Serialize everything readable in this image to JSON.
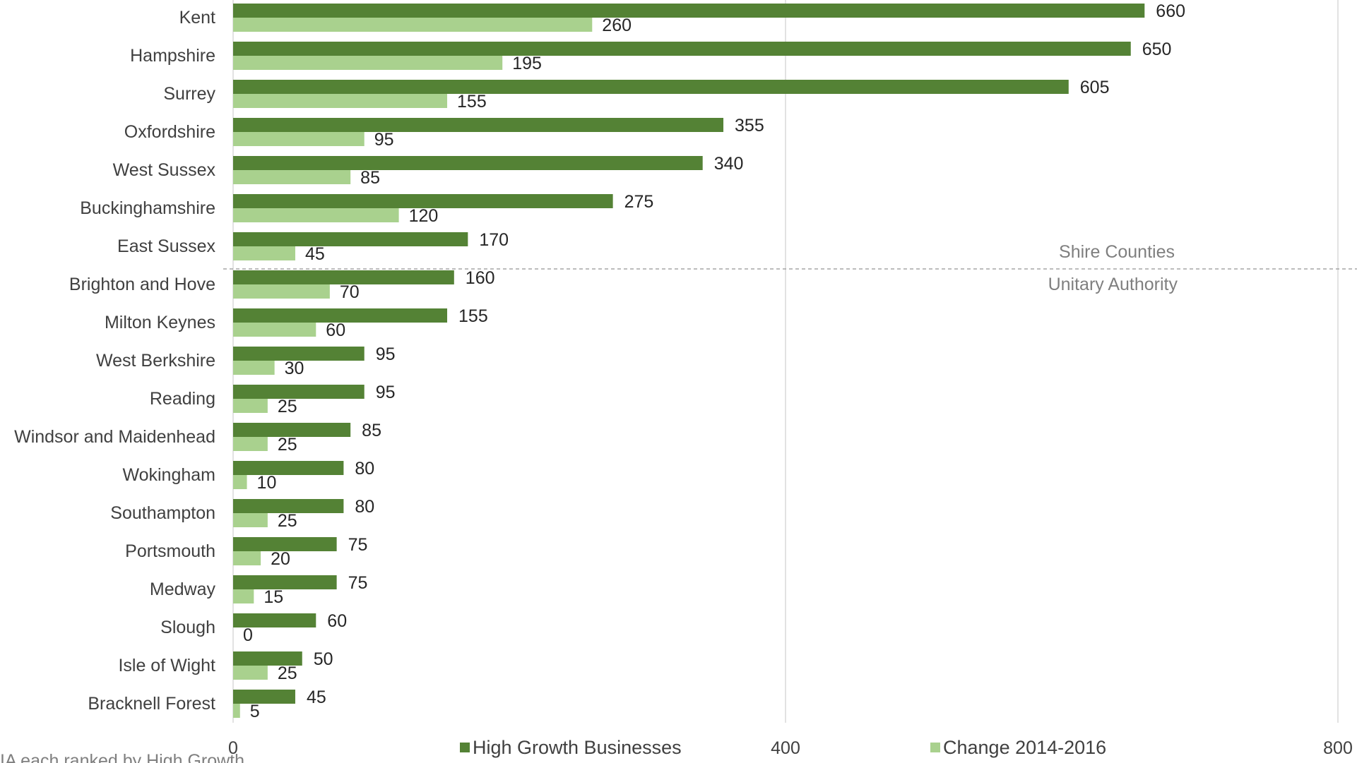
{
  "chart_data": {
    "type": "bar",
    "orientation": "horizontal",
    "categories": [
      "Kent",
      "Hampshire",
      "Surrey",
      "Oxfordshire",
      "West Sussex",
      "Buckinghamshire",
      "East Sussex",
      "Brighton and Hove",
      "Milton Keynes",
      "West Berkshire",
      "Reading",
      "Windsor and Maidenhead",
      "Wokingham",
      "Southampton",
      "Portsmouth",
      "Medway",
      "Slough",
      "Isle of Wight",
      "Bracknell Forest"
    ],
    "series": [
      {
        "name": "High Growth Businesses",
        "color": "#548235",
        "values": [
          660,
          650,
          605,
          355,
          340,
          275,
          170,
          160,
          155,
          95,
          95,
          85,
          80,
          80,
          75,
          75,
          60,
          50,
          45
        ]
      },
      {
        "name": "Change 2014-2016",
        "color": "#a9d18e",
        "values": [
          260,
          195,
          155,
          95,
          85,
          120,
          45,
          70,
          60,
          30,
          25,
          25,
          10,
          25,
          20,
          15,
          0,
          25,
          5
        ]
      }
    ],
    "xlim": [
      0,
      800
    ],
    "xticks": [
      "0",
      "400",
      "800"
    ],
    "grid": true,
    "legend_position": "bottom",
    "groups": [
      {
        "label": "Shire Counties"
      },
      {
        "label": "Unitary Authority"
      }
    ],
    "group_split_after_index": 6,
    "footnote": "IA each ranked by High Growth"
  }
}
